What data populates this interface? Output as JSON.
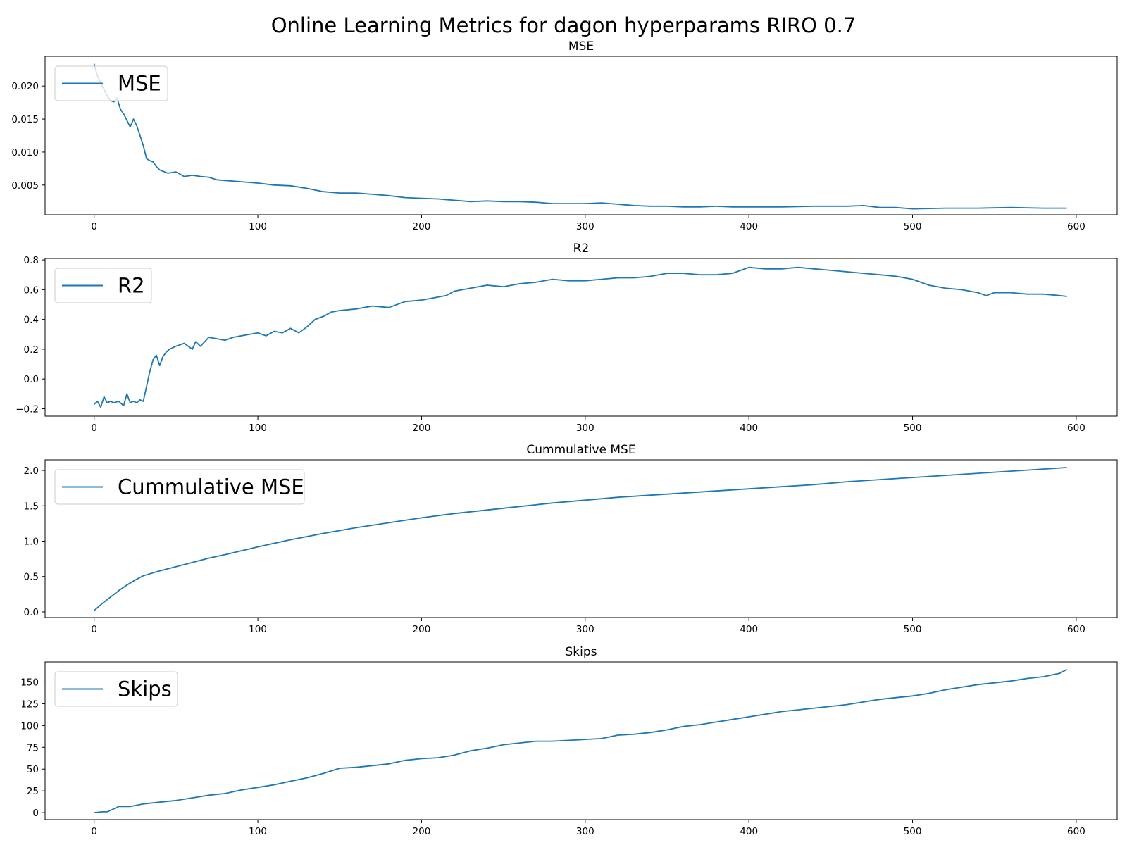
{
  "title": "Online Learning Metrics for dagon hyperparams RIRO 0.7",
  "line_color": "#1f77b4",
  "chart_data": [
    {
      "type": "line",
      "title": "MSE",
      "xlim": [
        -30,
        625
      ],
      "ylim": [
        0.0005,
        0.0245
      ],
      "x_ticks": [
        0,
        100,
        200,
        300,
        400,
        500,
        600
      ],
      "y_ticks": [
        0.005,
        0.01,
        0.015,
        0.02
      ],
      "y_tick_labels": [
        "0.005",
        "0.010",
        "0.015",
        "0.020"
      ],
      "legend": "top-left",
      "series": [
        {
          "name": "MSE",
          "x": [
            0,
            2,
            4,
            6,
            8,
            10,
            12,
            14,
            16,
            18,
            20,
            22,
            24,
            26,
            28,
            30,
            32,
            34,
            36,
            38,
            40,
            45,
            50,
            55,
            60,
            65,
            70,
            75,
            80,
            90,
            100,
            110,
            120,
            130,
            140,
            150,
            160,
            170,
            180,
            190,
            200,
            210,
            220,
            230,
            240,
            250,
            260,
            270,
            280,
            290,
            300,
            310,
            320,
            330,
            340,
            350,
            360,
            370,
            380,
            390,
            400,
            420,
            440,
            460,
            470,
            480,
            490,
            500,
            520,
            540,
            560,
            580,
            594
          ],
          "y": [
            0.0233,
            0.0215,
            0.0205,
            0.0195,
            0.0185,
            0.0178,
            0.0176,
            0.0182,
            0.0165,
            0.0158,
            0.0148,
            0.0138,
            0.015,
            0.014,
            0.0125,
            0.011,
            0.009,
            0.0087,
            0.0085,
            0.0078,
            0.0073,
            0.0068,
            0.007,
            0.0063,
            0.0065,
            0.0063,
            0.0062,
            0.0058,
            0.0057,
            0.0055,
            0.0053,
            0.005,
            0.0049,
            0.0045,
            0.004,
            0.0038,
            0.0038,
            0.0036,
            0.0034,
            0.0031,
            0.003,
            0.0029,
            0.0027,
            0.0025,
            0.0026,
            0.0025,
            0.0025,
            0.0024,
            0.0022,
            0.0022,
            0.0022,
            0.0023,
            0.0021,
            0.0019,
            0.0018,
            0.0018,
            0.0017,
            0.0017,
            0.0018,
            0.0017,
            0.0017,
            0.0017,
            0.0018,
            0.0018,
            0.0019,
            0.0016,
            0.0016,
            0.0014,
            0.0015,
            0.0015,
            0.0016,
            0.0015,
            0.0015
          ]
        }
      ]
    },
    {
      "type": "line",
      "title": "R2",
      "xlim": [
        -30,
        625
      ],
      "ylim": [
        -0.25,
        0.81
      ],
      "x_ticks": [
        0,
        100,
        200,
        300,
        400,
        500,
        600
      ],
      "y_ticks": [
        -0.2,
        0.0,
        0.2,
        0.4,
        0.6,
        0.8
      ],
      "y_tick_labels": [
        "−0.2",
        "0.0",
        "0.2",
        "0.4",
        "0.6",
        "0.8"
      ],
      "legend": "top-left",
      "series": [
        {
          "name": "R2",
          "x": [
            0,
            2,
            4,
            6,
            8,
            10,
            12,
            15,
            18,
            20,
            22,
            24,
            26,
            28,
            30,
            32,
            34,
            36,
            38,
            40,
            42,
            44,
            46,
            50,
            55,
            60,
            62,
            65,
            70,
            75,
            80,
            85,
            90,
            95,
            100,
            105,
            110,
            115,
            120,
            125,
            130,
            135,
            140,
            145,
            150,
            160,
            170,
            180,
            190,
            200,
            210,
            215,
            220,
            230,
            240,
            250,
            260,
            270,
            280,
            290,
            300,
            310,
            320,
            330,
            340,
            350,
            360,
            370,
            380,
            390,
            400,
            410,
            420,
            430,
            440,
            450,
            460,
            470,
            480,
            490,
            500,
            510,
            520,
            530,
            540,
            545,
            550,
            560,
            570,
            580,
            590,
            594
          ],
          "y": [
            -0.17,
            -0.15,
            -0.19,
            -0.12,
            -0.16,
            -0.15,
            -0.16,
            -0.15,
            -0.18,
            -0.1,
            -0.16,
            -0.15,
            -0.16,
            -0.14,
            -0.15,
            -0.05,
            0.05,
            0.13,
            0.16,
            0.09,
            0.15,
            0.18,
            0.2,
            0.22,
            0.24,
            0.2,
            0.25,
            0.22,
            0.28,
            0.27,
            0.26,
            0.28,
            0.29,
            0.3,
            0.31,
            0.29,
            0.32,
            0.31,
            0.34,
            0.31,
            0.35,
            0.4,
            0.42,
            0.45,
            0.46,
            0.47,
            0.49,
            0.48,
            0.52,
            0.53,
            0.55,
            0.56,
            0.59,
            0.61,
            0.63,
            0.62,
            0.64,
            0.65,
            0.67,
            0.66,
            0.66,
            0.67,
            0.68,
            0.68,
            0.69,
            0.71,
            0.71,
            0.7,
            0.7,
            0.71,
            0.75,
            0.74,
            0.74,
            0.75,
            0.74,
            0.73,
            0.72,
            0.71,
            0.7,
            0.69,
            0.67,
            0.63,
            0.61,
            0.6,
            0.58,
            0.56,
            0.58,
            0.58,
            0.57,
            0.57,
            0.56,
            0.555
          ]
        }
      ]
    },
    {
      "type": "line",
      "title": "Cummulative MSE",
      "xlim": [
        -30,
        625
      ],
      "ylim": [
        -0.08,
        2.15
      ],
      "x_ticks": [
        0,
        100,
        200,
        300,
        400,
        500,
        600
      ],
      "y_ticks": [
        0.0,
        0.5,
        1.0,
        1.5,
        2.0
      ],
      "y_tick_labels": [
        "0.0",
        "0.5",
        "1.0",
        "1.5",
        "2.0"
      ],
      "legend": "top-left",
      "series": [
        {
          "name": "Cummulative MSE",
          "x": [
            0,
            5,
            10,
            15,
            20,
            25,
            30,
            40,
            50,
            60,
            70,
            80,
            100,
            120,
            140,
            160,
            180,
            200,
            220,
            240,
            260,
            280,
            300,
            320,
            340,
            360,
            380,
            400,
            420,
            440,
            460,
            480,
            500,
            520,
            540,
            560,
            580,
            594
          ],
          "y": [
            0.02,
            0.12,
            0.21,
            0.3,
            0.38,
            0.45,
            0.51,
            0.58,
            0.64,
            0.7,
            0.76,
            0.81,
            0.92,
            1.02,
            1.11,
            1.19,
            1.26,
            1.33,
            1.39,
            1.44,
            1.49,
            1.54,
            1.58,
            1.62,
            1.65,
            1.68,
            1.71,
            1.74,
            1.77,
            1.8,
            1.84,
            1.87,
            1.9,
            1.93,
            1.96,
            1.99,
            2.02,
            2.04
          ]
        }
      ]
    },
    {
      "type": "line",
      "title": "Skips",
      "xlim": [
        -30,
        625
      ],
      "ylim": [
        -8,
        173
      ],
      "x_ticks": [
        0,
        100,
        200,
        300,
        400,
        500,
        600
      ],
      "y_ticks": [
        0,
        25,
        50,
        75,
        100,
        125,
        150
      ],
      "y_tick_labels": [
        "0",
        "25",
        "50",
        "75",
        "100",
        "125",
        "150"
      ],
      "legend": "top-left",
      "series": [
        {
          "name": "Skips",
          "x": [
            0,
            5,
            8,
            15,
            22,
            30,
            40,
            50,
            60,
            70,
            80,
            90,
            100,
            110,
            120,
            130,
            140,
            150,
            160,
            170,
            180,
            190,
            200,
            210,
            220,
            230,
            240,
            250,
            260,
            270,
            280,
            290,
            300,
            310,
            320,
            330,
            340,
            350,
            360,
            370,
            380,
            390,
            400,
            410,
            420,
            430,
            440,
            450,
            460,
            470,
            480,
            490,
            500,
            510,
            520,
            530,
            540,
            550,
            560,
            570,
            580,
            590,
            594
          ],
          "y": [
            0,
            1,
            1,
            7,
            7,
            10,
            12,
            14,
            17,
            20,
            22,
            26,
            29,
            32,
            36,
            40,
            45,
            51,
            52,
            54,
            56,
            60,
            62,
            63,
            66,
            71,
            74,
            78,
            80,
            82,
            82,
            83,
            84,
            85,
            89,
            90,
            92,
            95,
            99,
            101,
            104,
            107,
            110,
            113,
            116,
            118,
            120,
            122,
            124,
            127,
            130,
            132,
            134,
            137,
            141,
            144,
            147,
            149,
            151,
            154,
            156,
            160,
            164
          ]
        }
      ]
    }
  ]
}
